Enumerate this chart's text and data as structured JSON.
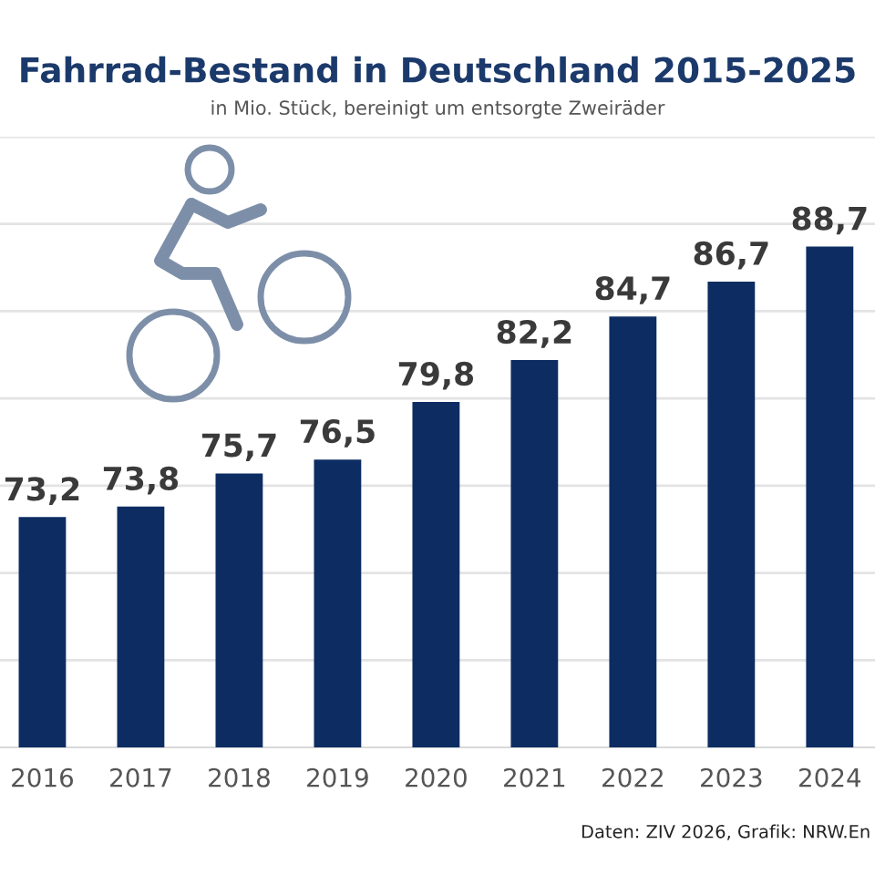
{
  "chart_data": {
    "type": "bar",
    "title": "Fahrrad-Bestand in Deutschland 2015-2025",
    "subtitle": "in Mio. Stück, bereinigt um entsorgte Zweiräder",
    "categories": [
      "2016",
      "2017",
      "2018",
      "2019",
      "2020",
      "2021",
      "2022",
      "2023",
      "2024"
    ],
    "values": [
      73.2,
      73.8,
      75.7,
      76.5,
      79.8,
      82.2,
      84.7,
      86.7,
      88.7
    ],
    "value_labels": [
      "73,2",
      "73,8",
      "75,7",
      "76,5",
      "79,8",
      "82,2",
      "84,7",
      "86,7",
      "88,7"
    ],
    "color": "#0d2d62",
    "ylim": [
      60,
      95
    ],
    "yticks": [
      {
        "value": 65,
        "label": null
      },
      {
        "value": 70,
        "label": null
      },
      {
        "value": 75,
        "label": null
      },
      {
        "value": 80,
        "label": null
      },
      {
        "value": 85,
        "label": null
      },
      {
        "value": 90,
        "label": null
      },
      {
        "value": 95,
        "label": null
      }
    ],
    "tick_labels": "x",
    "grid": "y",
    "legend": false,
    "annotations": [
      "Daten: ZIV 2026, Grafik: NRW.En"
    ]
  }
}
